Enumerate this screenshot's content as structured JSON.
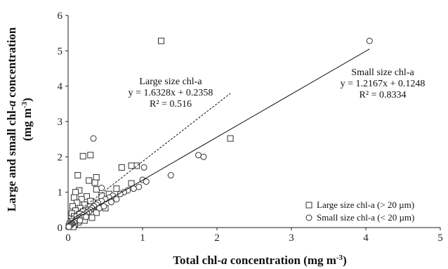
{
  "chart_data": {
    "type": "scatter",
    "title": "",
    "xlabel": {
      "prefix": "Total chl-",
      "italic": "a",
      "suffix": " concentration (mg m",
      "sup": "-3",
      "end": ")"
    },
    "ylabel": {
      "line1": {
        "prefix": "Large and small chl-",
        "italic": "a",
        "suffix": " concentration"
      },
      "line2": {
        "prefix": "(mg m",
        "sup": "-3",
        "end": ")"
      }
    },
    "xlim": [
      0,
      5
    ],
    "ylim": [
      0,
      6
    ],
    "xticks": [
      0,
      1,
      2,
      3,
      4,
      5
    ],
    "yticks": [
      0,
      1,
      2,
      3,
      4,
      5,
      6
    ],
    "grid": false,
    "legend_position": "bottom-right",
    "series": [
      {
        "name": "Large size chl-a (> 20 µm)",
        "marker": "square",
        "points": [
          [
            1.25,
            5.28
          ],
          [
            2.18,
            2.52
          ],
          [
            0.3,
            2.05
          ],
          [
            0.2,
            2.02
          ],
          [
            0.13,
            1.48
          ],
          [
            0.92,
            1.75
          ],
          [
            0.85,
            1.75
          ],
          [
            0.72,
            1.7
          ],
          [
            0.38,
            1.42
          ],
          [
            0.28,
            1.33
          ],
          [
            0.36,
            1.27
          ],
          [
            0.85,
            1.25
          ],
          [
            0.65,
            1.1
          ],
          [
            0.38,
            1.08
          ],
          [
            0.15,
            1.05
          ],
          [
            0.1,
            1.0
          ],
          [
            0.55,
            0.95
          ],
          [
            0.45,
            0.9
          ],
          [
            0.25,
            0.88
          ],
          [
            0.08,
            0.85
          ],
          [
            0.18,
            0.8
          ],
          [
            0.3,
            0.75
          ],
          [
            0.12,
            0.7
          ],
          [
            0.4,
            0.7
          ],
          [
            0.22,
            0.65
          ],
          [
            0.06,
            0.6
          ],
          [
            0.35,
            0.6
          ],
          [
            0.16,
            0.55
          ],
          [
            0.5,
            0.55
          ],
          [
            0.28,
            0.5
          ],
          [
            0.1,
            0.48
          ],
          [
            0.2,
            0.45
          ],
          [
            0.38,
            0.42
          ],
          [
            0.05,
            0.4
          ],
          [
            0.15,
            0.38
          ],
          [
            0.26,
            0.35
          ],
          [
            0.08,
            0.32
          ],
          [
            0.18,
            0.3
          ],
          [
            0.32,
            0.28
          ],
          [
            0.04,
            0.25
          ],
          [
            0.12,
            0.22
          ],
          [
            0.22,
            0.2
          ],
          [
            0.06,
            0.18
          ],
          [
            0.14,
            0.15
          ],
          [
            0.03,
            0.12
          ],
          [
            0.09,
            0.1
          ],
          [
            0.02,
            0.08
          ],
          [
            0.05,
            0.05
          ],
          [
            0.01,
            0.03
          ],
          [
            0.07,
            0.02
          ]
        ]
      },
      {
        "name": "Small size chl-a (< 20 µm)",
        "marker": "circle",
        "points": [
          [
            4.05,
            5.28
          ],
          [
            0.34,
            2.52
          ],
          [
            1.75,
            2.05
          ],
          [
            1.82,
            2.0
          ],
          [
            1.02,
            1.7
          ],
          [
            1.38,
            1.48
          ],
          [
            1.0,
            1.35
          ],
          [
            1.05,
            1.3
          ],
          [
            0.95,
            1.15
          ],
          [
            0.45,
            1.12
          ],
          [
            0.88,
            1.1
          ],
          [
            0.8,
            1.05
          ],
          [
            0.75,
            1.0
          ],
          [
            0.7,
            0.95
          ],
          [
            0.6,
            0.9
          ],
          [
            0.55,
            0.85
          ],
          [
            0.5,
            0.8
          ],
          [
            0.45,
            0.75
          ],
          [
            0.4,
            0.7
          ],
          [
            0.38,
            0.65
          ],
          [
            0.35,
            0.6
          ],
          [
            0.32,
            0.55
          ],
          [
            0.3,
            0.5
          ],
          [
            0.28,
            0.45
          ],
          [
            0.25,
            0.42
          ],
          [
            0.22,
            0.38
          ],
          [
            0.2,
            0.35
          ],
          [
            0.18,
            0.3
          ],
          [
            0.15,
            0.28
          ],
          [
            0.13,
            0.25
          ],
          [
            0.11,
            0.22
          ],
          [
            0.1,
            0.18
          ],
          [
            0.08,
            0.15
          ],
          [
            0.06,
            0.12
          ],
          [
            0.05,
            0.1
          ],
          [
            0.04,
            0.08
          ],
          [
            0.03,
            0.06
          ],
          [
            0.02,
            0.04
          ],
          [
            0.01,
            0.02
          ],
          [
            0.16,
            0.2
          ],
          [
            0.24,
            0.3
          ],
          [
            0.42,
            0.55
          ],
          [
            0.48,
            0.6
          ],
          [
            0.58,
            0.72
          ],
          [
            0.65,
            0.8
          ]
        ]
      }
    ],
    "trendlines": [
      {
        "series": "Large size chl-a (> 20 µm)",
        "style": "dashed",
        "slope": 1.6328,
        "intercept": 0.2358,
        "x_range": [
          0,
          2.18
        ],
        "label": [
          "Large size chl-a",
          "y = 1.6328x + 0.2358",
          "R² = 0.516"
        ]
      },
      {
        "series": "Small size chl-a (< 20 µm)",
        "style": "solid",
        "slope": 1.2167,
        "intercept": 0.1248,
        "x_range": [
          0,
          4.05
        ],
        "label": [
          "Small size chl-a",
          "y = 1.2167x + 0.1248",
          "R² = 0.8334"
        ]
      }
    ],
    "colors": {
      "axis": "#222222",
      "marker_stroke": "#333333",
      "line": "#111111"
    }
  }
}
